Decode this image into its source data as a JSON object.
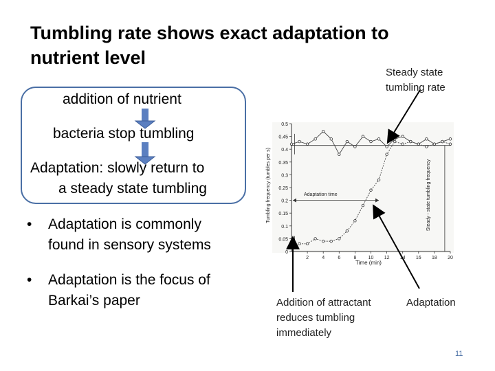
{
  "slide": {
    "title_line1": "Tumbling rate shows exact adaptation to",
    "title_line2": "nutrient level",
    "flow": {
      "step1": "addition of nutrient",
      "step2": "bacteria stop tumbling",
      "step3_line1": "Adaptation: slowly return to",
      "step3_line2": "a steady state tumbling"
    },
    "bullets": [
      {
        "line1": "Adaptation is commonly",
        "line2": "found in sensory systems"
      },
      {
        "line1": "Adaptation is the focus of",
        "line2": "Barkai’s paper"
      }
    ],
    "annotations": {
      "steady_state_line1": "Steady state",
      "steady_state_line2": "tumbling rate",
      "attractant_line1": "Addition of attractant",
      "attractant_line2": "reduces tumbling",
      "attractant_line3": "immediately",
      "adaptation": "Adaptation"
    },
    "slide_number": "11"
  },
  "colors": {
    "accent": "#4a6fa5",
    "arrow_fill": "#5b7fc0"
  },
  "chart_data": {
    "type": "line",
    "xlabel": "Time (min)",
    "ylabel": "Tumbling frequency (tumbles per s)",
    "right_label": "Steady - state tumbling frequency",
    "annotation": "Adaptation time",
    "xlim": [
      0,
      20
    ],
    "ylim": [
      0,
      0.5
    ],
    "x_ticks": [
      "2",
      "4",
      "6",
      "8",
      "10",
      "12",
      "14",
      "16",
      "18",
      "20"
    ],
    "y_ticks": [
      "0",
      "0.05",
      "0.1",
      "0.15",
      "0.2",
      "0.25",
      "0.3",
      "0.35",
      "0.4",
      "0.45",
      "0.5"
    ],
    "series": [
      {
        "x": [
          0,
          1,
          2,
          3,
          4,
          5,
          6,
          7,
          8,
          9,
          10,
          11,
          12,
          13,
          14,
          15,
          16,
          17,
          18,
          19,
          20
        ],
        "y": [
          0.42,
          0.43,
          0.42,
          0.44,
          0.47,
          0.44,
          0.38,
          0.43,
          0.41,
          0.45,
          0.43,
          0.44,
          0.41,
          0.44,
          0.45,
          0.43,
          0.42,
          0.44,
          0.42,
          0.43,
          0.44
        ]
      },
      {
        "x": [
          1,
          2,
          3,
          4,
          5,
          6,
          7,
          8,
          9,
          10,
          11,
          12,
          13,
          14,
          15,
          16,
          17,
          18,
          19,
          20
        ],
        "y": [
          0.03,
          0.03,
          0.05,
          0.04,
          0.04,
          0.05,
          0.08,
          0.12,
          0.18,
          0.24,
          0.28,
          0.38,
          0.43,
          0.42,
          0.43,
          0.42,
          0.41,
          0.42,
          0.43,
          0.42
        ]
      }
    ],
    "steady_state_value": 0.415
  }
}
